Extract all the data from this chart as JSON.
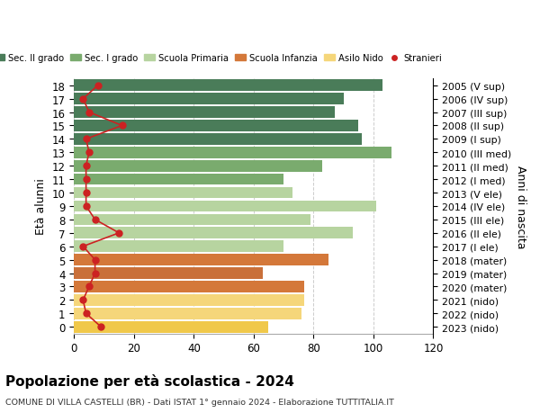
{
  "ages": [
    0,
    1,
    2,
    3,
    4,
    5,
    6,
    7,
    8,
    9,
    10,
    11,
    12,
    13,
    14,
    15,
    16,
    17,
    18
  ],
  "right_labels": [
    "2023 (nido)",
    "2022 (nido)",
    "2021 (nido)",
    "2020 (mater)",
    "2019 (mater)",
    "2018 (mater)",
    "2017 (I ele)",
    "2016 (II ele)",
    "2015 (III ele)",
    "2014 (IV ele)",
    "2013 (V ele)",
    "2012 (I med)",
    "2011 (II med)",
    "2010 (III med)",
    "2009 (I sup)",
    "2008 (II sup)",
    "2007 (III sup)",
    "2006 (IV sup)",
    "2005 (V sup)"
  ],
  "bar_values": [
    65,
    76,
    77,
    77,
    63,
    85,
    70,
    93,
    79,
    101,
    73,
    70,
    83,
    106,
    96,
    95,
    87,
    90,
    103
  ],
  "stranieri_values": [
    9,
    4,
    3,
    5,
    7,
    7,
    3,
    15,
    7,
    4,
    4,
    4,
    4,
    5,
    4,
    16,
    5,
    3,
    8
  ],
  "bar_colors": [
    "#f0c84a",
    "#f5d67a",
    "#f5d67a",
    "#d4783a",
    "#c9703a",
    "#d4783a",
    "#b7d4a0",
    "#b7d4a0",
    "#b7d4a0",
    "#b7d4a0",
    "#b7d4a0",
    "#7aab6e",
    "#7aab6e",
    "#7aab6e",
    "#4a7c59",
    "#4a7c59",
    "#4a7c59",
    "#4a7c59",
    "#4a7c59"
  ],
  "legend_labels": [
    "Sec. II grado",
    "Sec. I grado",
    "Scuola Primaria",
    "Scuola Infanzia",
    "Asilo Nido",
    "Stranieri"
  ],
  "legend_colors": [
    "#4a7c59",
    "#7aab6e",
    "#b7d4a0",
    "#d4783a",
    "#f5d67a",
    "#cc2222"
  ],
  "title": "Popolazione per età scolastica - 2024",
  "subtitle": "COMUNE DI VILLA CASTELLI (BR) - Dati ISTAT 1° gennaio 2024 - Elaborazione TUTTITALIA.IT",
  "ylabel_left": "Età alunni",
  "ylabel_right": "Anni di nascita",
  "xlim": [
    0,
    120
  ],
  "xticks": [
    0,
    20,
    40,
    60,
    80,
    100,
    120
  ],
  "stranieri_color": "#cc2222",
  "background_color": "#ffffff",
  "grid_color": "#cccccc"
}
